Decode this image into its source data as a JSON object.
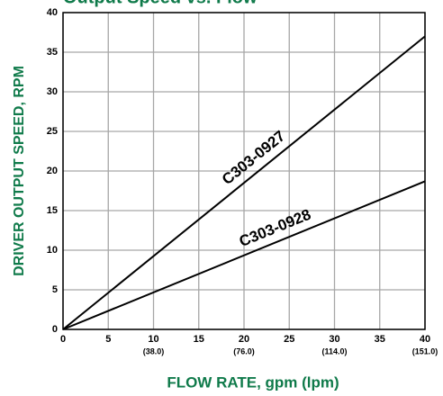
{
  "chart_data": {
    "type": "line",
    "title": "Output Speed vs. Flow",
    "x_label": "FLOW RATE, gpm (lpm)",
    "y_label": "DRIVER OUTPUT SPEED, RPM",
    "x": [
      0,
      40
    ],
    "series": [
      {
        "name": "C303-0927",
        "color": "#000000",
        "values": [
          0,
          37
        ]
      },
      {
        "name": "C303-0928",
        "color": "#000000",
        "values": [
          0,
          18.7
        ]
      }
    ],
    "xlim": [
      0,
      40
    ],
    "ylim": [
      0,
      40
    ],
    "xticks": [
      0,
      5,
      10,
      15,
      20,
      25,
      30,
      35,
      40
    ],
    "xticks2": [
      {
        "value": 10,
        "label": "(38.0)"
      },
      {
        "value": 20,
        "label": "(76.0)"
      },
      {
        "value": 30,
        "label": "(114.0)"
      },
      {
        "value": 40,
        "label": "(151.0)"
      }
    ],
    "yticks": [
      0,
      5,
      10,
      15,
      20,
      25,
      30,
      35,
      40
    ],
    "grid": true,
    "grid_color": "#a6a6a6",
    "label_color": "#0f7a4a"
  }
}
